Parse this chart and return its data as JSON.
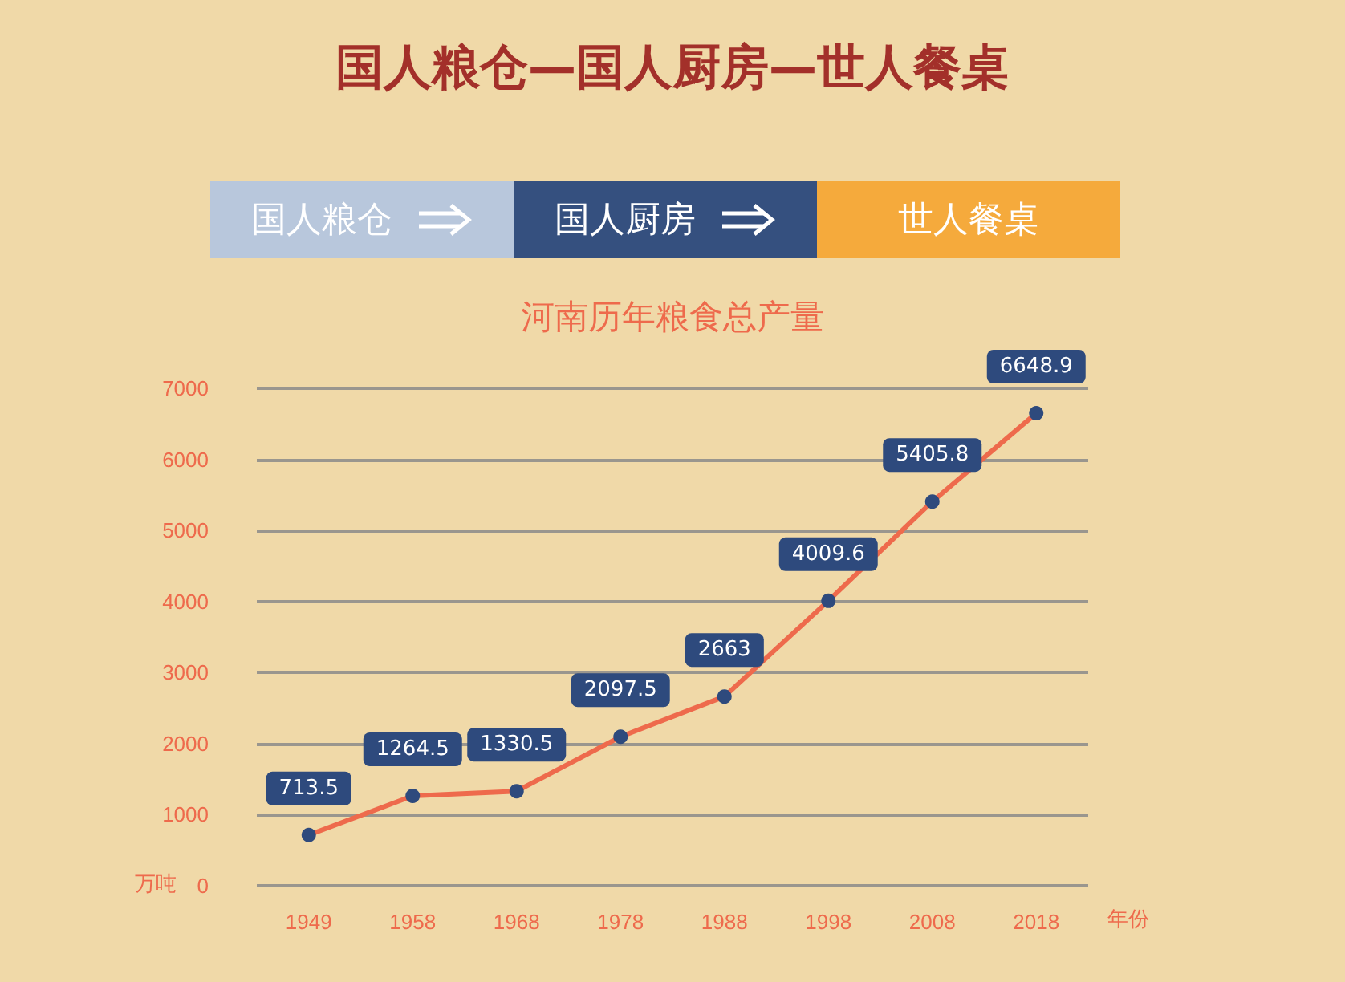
{
  "chart_data": {
    "type": "line",
    "title": "国人粮仓—国人厨房—世人餐桌",
    "subtitle": "河南历年粮食总产量",
    "xlabel": "年份",
    "ylabel": "万吨",
    "annotations": [
      "国人粮仓",
      "国人厨房",
      "世人餐桌"
    ],
    "categories": [
      "1949",
      "1958",
      "1968",
      "1978",
      "1988",
      "1998",
      "2008",
      "2018"
    ],
    "series": [
      {
        "color": "#ee6a4c",
        "values": [
          713.5,
          1264.5,
          1330.5,
          2097.5,
          2663,
          4009.6,
          5405.8,
          6648.9
        ]
      }
    ],
    "ylim": [
      0,
      7000
    ],
    "yticks": [
      0,
      1000,
      2000,
      3000,
      4000,
      5000,
      6000,
      7000
    ],
    "grid": "y",
    "data_labels": true,
    "marker": "circle"
  }
}
